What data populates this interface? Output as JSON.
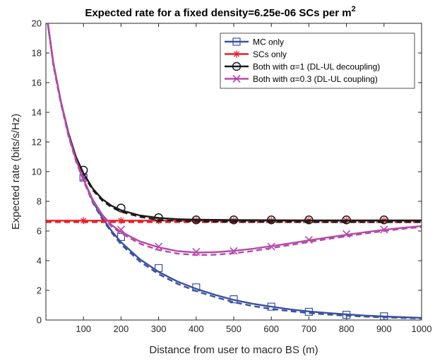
{
  "chart_data": {
    "type": "line",
    "title": "Expected rate for a fixed density=6.25e-06 SCs per m",
    "title_superscript": "2",
    "xlabel": "Distance from user to macro BS (m)",
    "ylabel": "Expected rate (bits/s/Hz)",
    "xlim": [
      0,
      1000
    ],
    "ylim": [
      0,
      20
    ],
    "xticks": [
      100,
      200,
      300,
      400,
      500,
      600,
      700,
      800,
      900,
      1000
    ],
    "yticks": [
      0,
      2,
      4,
      6,
      8,
      10,
      12,
      14,
      16,
      18,
      20
    ],
    "grid": false,
    "legend_position": "top-right",
    "series": [
      {
        "name": "MC only",
        "color": "#3a51a3",
        "marker": "square",
        "markers_x": [
          100,
          200,
          300,
          400,
          500,
          600,
          700,
          800,
          900
        ],
        "markers_y": [
          9.6,
          5.6,
          3.5,
          2.2,
          1.4,
          0.9,
          0.55,
          0.35,
          0.25
        ],
        "solid_x": [
          5,
          20,
          40,
          60,
          80,
          100,
          125,
          150,
          175,
          200,
          250,
          300,
          350,
          400,
          450,
          500,
          550,
          600,
          650,
          700,
          750,
          800,
          850,
          900,
          950,
          1000
        ],
        "solid_y": [
          20,
          17.3,
          14.7,
          12.6,
          10.9,
          9.5,
          8.0,
          6.9,
          6.0,
          5.25,
          4.1,
          3.25,
          2.6,
          2.1,
          1.7,
          1.35,
          1.1,
          0.9,
          0.72,
          0.58,
          0.47,
          0.38,
          0.3,
          0.24,
          0.19,
          0.15
        ],
        "dashed_x": [
          5,
          20,
          40,
          60,
          80,
          100,
          125,
          150,
          175,
          200,
          250,
          300,
          350,
          400,
          450,
          500,
          550,
          600,
          650,
          700,
          750,
          800,
          850,
          900,
          950,
          1000
        ],
        "dashed_y": [
          20,
          17.2,
          14.6,
          12.5,
          10.8,
          9.4,
          7.9,
          6.8,
          5.9,
          5.1,
          3.95,
          3.1,
          2.45,
          1.95,
          1.55,
          1.2,
          0.95,
          0.75,
          0.6,
          0.47,
          0.37,
          0.29,
          0.23,
          0.18,
          0.14,
          0.11
        ]
      },
      {
        "name": "SCs only",
        "color": "#e8202a",
        "marker": "asterisk",
        "markers_x": [
          100,
          200,
          300,
          400,
          500,
          600,
          700,
          800,
          900
        ],
        "markers_y": [
          6.7,
          6.7,
          6.7,
          6.7,
          6.7,
          6.7,
          6.7,
          6.7,
          6.7
        ],
        "solid_x": [
          0,
          1000
        ],
        "solid_y": [
          6.7,
          6.7
        ],
        "dashed_x": [
          0,
          1000
        ],
        "dashed_y": [
          6.6,
          6.6
        ]
      },
      {
        "name": "Both with α=1 (DL-UL decoupling)",
        "color": "#1a1a1a",
        "marker": "circle",
        "markers_x": [
          100,
          200,
          300,
          400,
          500,
          600,
          700,
          800,
          900
        ],
        "markers_y": [
          10.1,
          7.55,
          6.9,
          6.75,
          6.75,
          6.75,
          6.75,
          6.75,
          6.75
        ],
        "solid_x": [
          5,
          20,
          40,
          60,
          80,
          100,
          125,
          150,
          175,
          200,
          250,
          300,
          350,
          400,
          500,
          600,
          700,
          800,
          900,
          1000
        ],
        "solid_y": [
          20,
          17.3,
          14.7,
          12.6,
          11.0,
          9.9,
          8.85,
          8.15,
          7.7,
          7.4,
          7.05,
          6.88,
          6.8,
          6.76,
          6.74,
          6.73,
          6.72,
          6.72,
          6.72,
          6.72
        ],
        "dashed_x": [
          5,
          20,
          40,
          60,
          80,
          100,
          125,
          150,
          175,
          200,
          250,
          300,
          350,
          400,
          500,
          600,
          700,
          800,
          900,
          1000
        ],
        "dashed_y": [
          20,
          17.2,
          14.6,
          12.5,
          10.9,
          9.8,
          8.75,
          8.05,
          7.6,
          7.3,
          6.95,
          6.75,
          6.68,
          6.64,
          6.62,
          6.61,
          6.6,
          6.6,
          6.6,
          6.6
        ]
      },
      {
        "name": "Both with α=0.3 (DL-UL coupling)",
        "color": "#b54aa8",
        "marker": "x",
        "markers_x": [
          100,
          200,
          300,
          400,
          500,
          600,
          700,
          800,
          900
        ],
        "markers_y": [
          9.6,
          6.1,
          4.95,
          4.6,
          4.65,
          4.95,
          5.4,
          5.8,
          6.1
        ],
        "solid_x": [
          5,
          20,
          40,
          60,
          80,
          100,
          125,
          150,
          175,
          200,
          250,
          300,
          350,
          400,
          450,
          500,
          550,
          600,
          650,
          700,
          750,
          800,
          850,
          900,
          950,
          1000
        ],
        "solid_y": [
          20,
          17.3,
          14.7,
          12.5,
          10.8,
          9.5,
          8.1,
          7.1,
          6.4,
          5.95,
          5.3,
          4.9,
          4.65,
          4.55,
          4.57,
          4.66,
          4.8,
          4.98,
          5.17,
          5.37,
          5.56,
          5.75,
          5.92,
          6.08,
          6.22,
          6.33
        ],
        "dashed_x": [
          5,
          20,
          40,
          60,
          80,
          100,
          125,
          150,
          175,
          200,
          250,
          300,
          350,
          400,
          450,
          500,
          550,
          600,
          650,
          700,
          750,
          800,
          850,
          900,
          950,
          1000
        ],
        "dashed_y": [
          20,
          17.2,
          14.6,
          12.4,
          10.7,
          9.4,
          8.0,
          7.0,
          6.3,
          5.85,
          5.15,
          4.72,
          4.48,
          4.38,
          4.4,
          4.5,
          4.65,
          4.85,
          5.05,
          5.26,
          5.46,
          5.65,
          5.83,
          6.0,
          6.15,
          6.27
        ]
      }
    ]
  }
}
